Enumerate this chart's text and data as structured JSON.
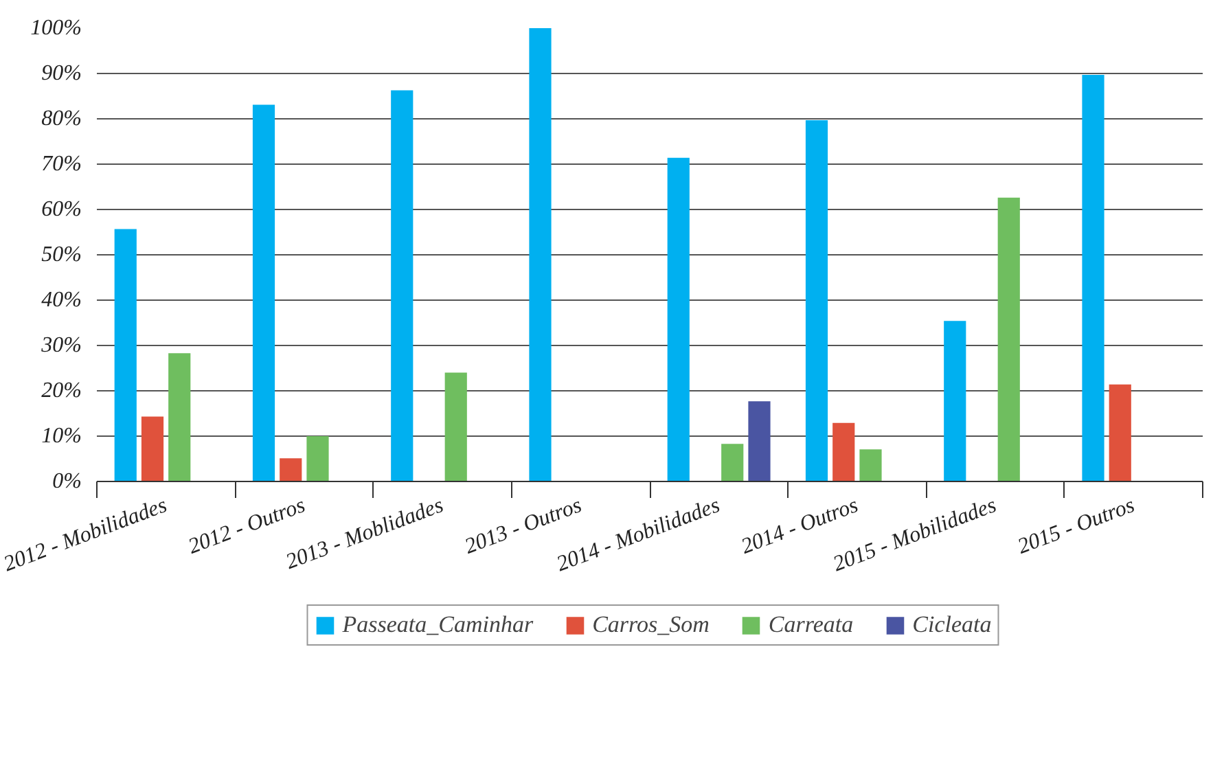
{
  "chart_data": {
    "type": "bar",
    "categories": [
      "2012 - Mobilidades",
      "2012 - Outros",
      "2013 - Moblidades",
      "2013 - Outros",
      "2014 - Mobilidades",
      "2014 - Outros",
      "2015 - Mobilidades",
      "2015 - Outros"
    ],
    "series": [
      {
        "name": "Passeata_Caminhar",
        "color": "#00b0f0",
        "values": [
          55.7,
          83.1,
          86.3,
          100,
          71.4,
          79.7,
          35.4,
          89.7
        ]
      },
      {
        "name": "Carros_Som",
        "color": "#e0523c",
        "values": [
          14.3,
          5.1,
          null,
          null,
          null,
          12.9,
          null,
          21.4
        ]
      },
      {
        "name": "Carreata",
        "color": "#6fbe5f",
        "values": [
          28.3,
          10,
          24,
          null,
          8.3,
          7.1,
          62.6,
          null
        ]
      },
      {
        "name": "Cicleata",
        "color": "#4a55a2",
        "values": [
          null,
          null,
          null,
          null,
          17.7,
          null,
          null,
          null
        ]
      }
    ],
    "ylim": [
      0,
      100
    ],
    "yticks": [
      {
        "value": 0,
        "label": "0%"
      },
      {
        "value": 10,
        "label": "10%"
      },
      {
        "value": 20,
        "label": "20%"
      },
      {
        "value": 30,
        "label": "30%"
      },
      {
        "value": 40,
        "label": "40%"
      },
      {
        "value": 50,
        "label": "50%"
      },
      {
        "value": 60,
        "label": "60%"
      },
      {
        "value": 70,
        "label": "70%"
      },
      {
        "value": 80,
        "label": "80%"
      },
      {
        "value": 90,
        "label": "90%"
      },
      {
        "value": 100,
        "label": "100%"
      }
    ],
    "grid": "y",
    "legend": "bottom"
  }
}
